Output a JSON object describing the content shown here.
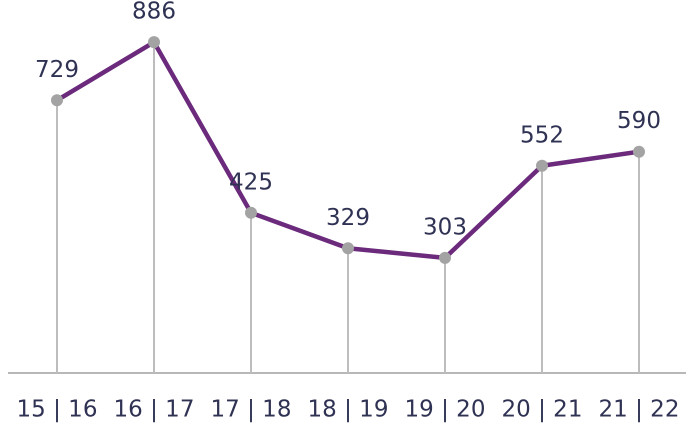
{
  "chart_data": {
    "type": "line",
    "categories": [
      "15 | 16",
      "16 | 17",
      "17 | 18",
      "18 | 19",
      "19 | 20",
      "20 | 21",
      "21 | 22"
    ],
    "values": [
      729,
      886,
      425,
      329,
      303,
      552,
      590
    ],
    "color": "#6b2a7c",
    "marker_color": "#a3a3a3",
    "ylim": [
      0,
      1000
    ]
  }
}
